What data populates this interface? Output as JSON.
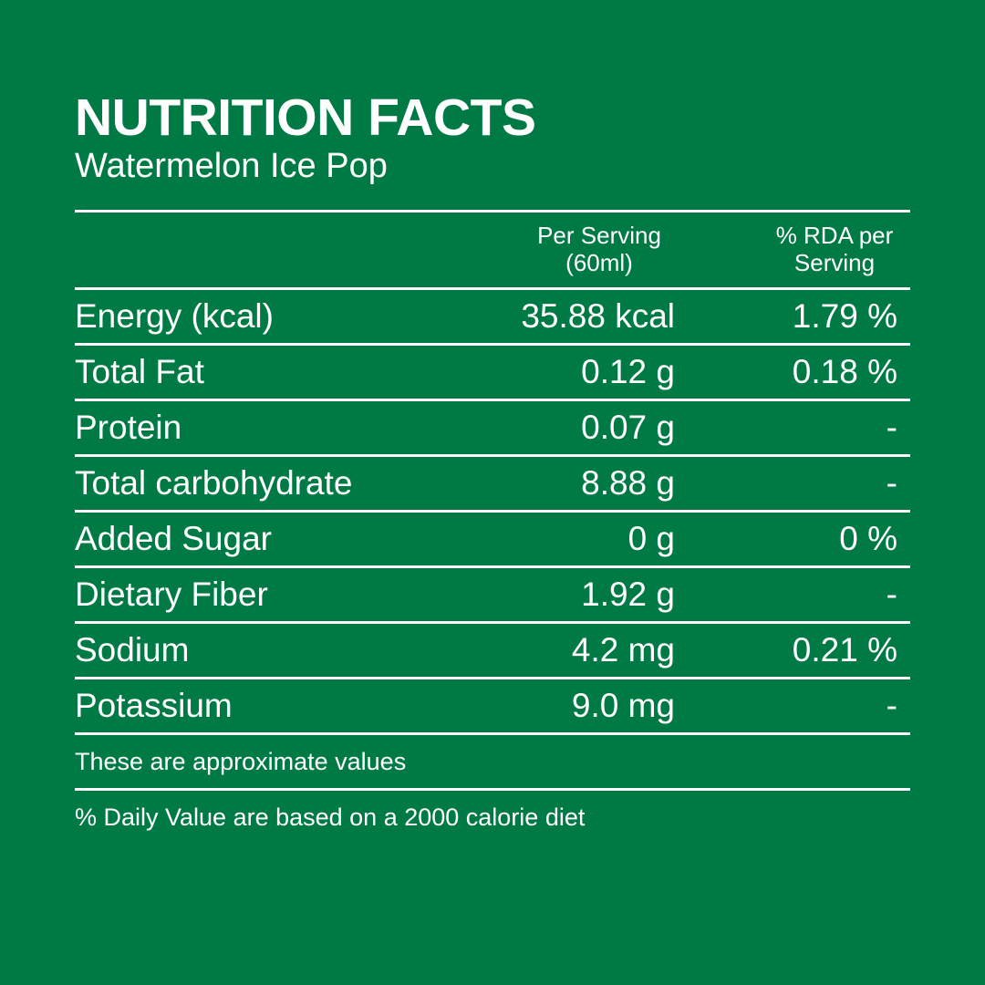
{
  "header": {
    "title": "NUTRITION FACTS",
    "subtitle": "Watermelon Ice Pop"
  },
  "table": {
    "columns": {
      "per_serving_line1": "Per Serving",
      "per_serving_line2": "(60ml)",
      "rda_line1": "% RDA per",
      "rda_line2": "Serving"
    },
    "rows": [
      {
        "name": "Energy (kcal)",
        "serving": "35.88 kcal",
        "rda": "1.79 %"
      },
      {
        "name": "Total Fat",
        "serving": "0.12 g",
        "rda": "0.18 %"
      },
      {
        "name": "Protein",
        "serving": "0.07 g",
        "rda": "-"
      },
      {
        "name": "Total carbohydrate",
        "serving": "8.88 g",
        "rda": "-"
      },
      {
        "name": "Added Sugar",
        "serving": "0 g",
        "rda": "0 %"
      },
      {
        "name": "Dietary Fiber",
        "serving": "1.92 g",
        "rda": "-"
      },
      {
        "name": "Sodium",
        "serving": "4.2 mg",
        "rda": "0.21 %"
      },
      {
        "name": "Potassium",
        "serving": "9.0 mg",
        "rda": "-"
      }
    ]
  },
  "footer": {
    "approx_note": "These are approximate values",
    "daily_value_note": "%  Daily Value are based on a 2000 calorie diet"
  },
  "colors": {
    "background": "#007a45",
    "text": "#ffffff"
  }
}
